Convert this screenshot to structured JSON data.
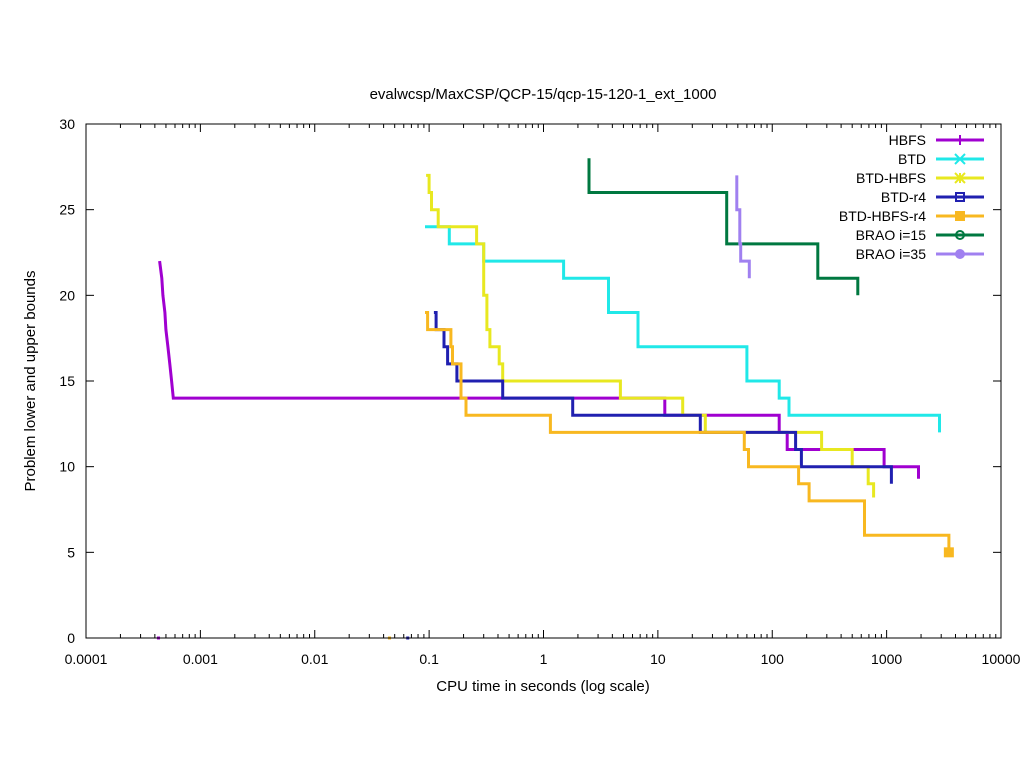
{
  "chart_data": {
    "type": "line",
    "step": true,
    "title": "evalwcsp/MaxCSP/QCP-15/qcp-15-120-1_ext_1000",
    "xlabel": "CPU time in seconds (log scale)",
    "ylabel": "Problem lower and upper bounds",
    "xscale": "log",
    "xlim": [
      0.0001,
      10000
    ],
    "ylim": [
      0,
      30
    ],
    "xticks": [
      0.0001,
      0.001,
      0.01,
      0.1,
      1,
      10,
      100,
      1000,
      10000
    ],
    "xtick_labels": [
      "0.0001",
      "0.001",
      "0.01",
      "0.1",
      "1",
      "10",
      "100",
      "1000",
      "10000"
    ],
    "yticks": [
      0,
      5,
      10,
      15,
      20,
      25,
      30
    ],
    "ytick_labels": [
      "0",
      "5",
      "10",
      "15",
      "20",
      "25",
      "30"
    ],
    "legend_position": "top-right",
    "series": [
      {
        "name": "HBFS",
        "color": "#a000d0",
        "marker": "plus",
        "upper": [
          [
            0.00044,
            22
          ],
          [
            0.00046,
            21
          ],
          [
            0.00047,
            20
          ],
          [
            0.00049,
            19
          ],
          [
            0.0005,
            18
          ],
          [
            0.00052,
            17
          ],
          [
            0.00054,
            16
          ],
          [
            0.00056,
            15
          ],
          [
            0.00058,
            14
          ],
          [
            11.5,
            14
          ],
          [
            11.5,
            13
          ],
          [
            115,
            13
          ],
          [
            115,
            12
          ],
          [
            135,
            12
          ],
          [
            135,
            11
          ],
          [
            950,
            11
          ],
          [
            950,
            10
          ],
          [
            1900,
            10
          ],
          [
            1900,
            9.3
          ]
        ],
        "lower_points": [
          [
            0.00043,
            0
          ]
        ]
      },
      {
        "name": "BTD",
        "color": "#20e8e8",
        "marker": "x",
        "upper": [
          [
            0.092,
            24
          ],
          [
            0.15,
            24
          ],
          [
            0.15,
            23
          ],
          [
            0.3,
            23
          ],
          [
            0.3,
            22
          ],
          [
            1.5,
            22
          ],
          [
            1.5,
            21
          ],
          [
            3.7,
            21
          ],
          [
            3.7,
            19
          ],
          [
            6.7,
            19
          ],
          [
            6.7,
            17
          ],
          [
            60,
            17
          ],
          [
            60,
            15
          ],
          [
            115,
            15
          ],
          [
            115,
            14
          ],
          [
            140,
            14
          ],
          [
            140,
            13
          ],
          [
            2900,
            13
          ],
          [
            2900,
            12
          ]
        ],
        "lower_points": []
      },
      {
        "name": "BTD-HBFS",
        "color": "#e8e820",
        "marker": "star",
        "upper": [
          [
            0.094,
            27
          ],
          [
            0.1,
            27
          ],
          [
            0.1,
            26
          ],
          [
            0.105,
            26
          ],
          [
            0.105,
            25
          ],
          [
            0.12,
            25
          ],
          [
            0.12,
            24
          ],
          [
            0.26,
            24
          ],
          [
            0.26,
            23
          ],
          [
            0.3,
            23
          ],
          [
            0.3,
            20
          ],
          [
            0.32,
            20
          ],
          [
            0.32,
            18
          ],
          [
            0.34,
            18
          ],
          [
            0.34,
            17
          ],
          [
            0.41,
            17
          ],
          [
            0.41,
            16
          ],
          [
            0.44,
            16
          ],
          [
            0.44,
            15
          ],
          [
            4.7,
            15
          ],
          [
            4.7,
            14
          ],
          [
            16.5,
            14
          ],
          [
            16.5,
            13
          ],
          [
            26,
            13
          ],
          [
            26,
            12
          ],
          [
            270,
            12
          ],
          [
            270,
            11
          ],
          [
            500,
            11
          ],
          [
            500,
            10
          ],
          [
            690,
            10
          ],
          [
            690,
            9
          ],
          [
            770,
            9
          ],
          [
            770,
            8.2
          ]
        ],
        "lower_points": []
      },
      {
        "name": "BTD-r4",
        "color": "#2020b0",
        "marker": "square",
        "upper": [
          [
            0.11,
            19
          ],
          [
            0.115,
            19
          ],
          [
            0.115,
            18
          ],
          [
            0.135,
            18
          ],
          [
            0.135,
            17
          ],
          [
            0.145,
            17
          ],
          [
            0.145,
            16
          ],
          [
            0.175,
            16
          ],
          [
            0.175,
            15
          ],
          [
            0.44,
            15
          ],
          [
            0.44,
            14
          ],
          [
            1.8,
            14
          ],
          [
            1.8,
            13
          ],
          [
            23.5,
            13
          ],
          [
            23.5,
            12
          ],
          [
            160,
            12
          ],
          [
            160,
            11
          ],
          [
            180,
            11
          ],
          [
            180,
            10
          ],
          [
            1100,
            10
          ],
          [
            1100,
            9
          ]
        ],
        "lower_points": [
          [
            0.065,
            0
          ]
        ]
      },
      {
        "name": "BTD-HBFS-r4",
        "color": "#f8b820",
        "marker": "filled-square",
        "upper": [
          [
            0.092,
            19
          ],
          [
            0.097,
            19
          ],
          [
            0.097,
            18
          ],
          [
            0.155,
            18
          ],
          [
            0.155,
            17
          ],
          [
            0.16,
            17
          ],
          [
            0.16,
            16
          ],
          [
            0.19,
            16
          ],
          [
            0.19,
            14
          ],
          [
            0.21,
            14
          ],
          [
            0.21,
            13
          ],
          [
            1.15,
            13
          ],
          [
            1.15,
            12
          ],
          [
            57,
            12
          ],
          [
            57,
            11
          ],
          [
            62,
            11
          ],
          [
            62,
            10
          ],
          [
            78,
            10
          ],
          [
            78,
            10
          ],
          [
            170,
            10
          ],
          [
            170,
            9
          ],
          [
            210,
            9
          ],
          [
            210,
            8
          ],
          [
            640,
            8
          ],
          [
            640,
            6
          ],
          [
            3500,
            6
          ],
          [
            3500,
            5
          ]
        ],
        "lower_points": [
          [
            0.045,
            0
          ]
        ],
        "end_marker": [
          3500,
          5
        ]
      },
      {
        "name": "BRAO i=15",
        "color": "#007840",
        "marker": "circle",
        "upper": [
          [
            2.5,
            28
          ],
          [
            2.5,
            26
          ],
          [
            40,
            26
          ],
          [
            40,
            23
          ],
          [
            250,
            23
          ],
          [
            250,
            21
          ],
          [
            560,
            21
          ],
          [
            560,
            20
          ]
        ],
        "lower_points": []
      },
      {
        "name": "BRAO i=35",
        "color": "#a080f0",
        "marker": "filled-circle",
        "upper": [
          [
            49,
            27
          ],
          [
            49,
            25
          ],
          [
            52,
            25
          ],
          [
            52,
            23
          ],
          [
            53,
            23
          ],
          [
            53,
            22
          ],
          [
            63,
            22
          ],
          [
            63,
            21
          ]
        ],
        "lower_points": []
      }
    ]
  }
}
